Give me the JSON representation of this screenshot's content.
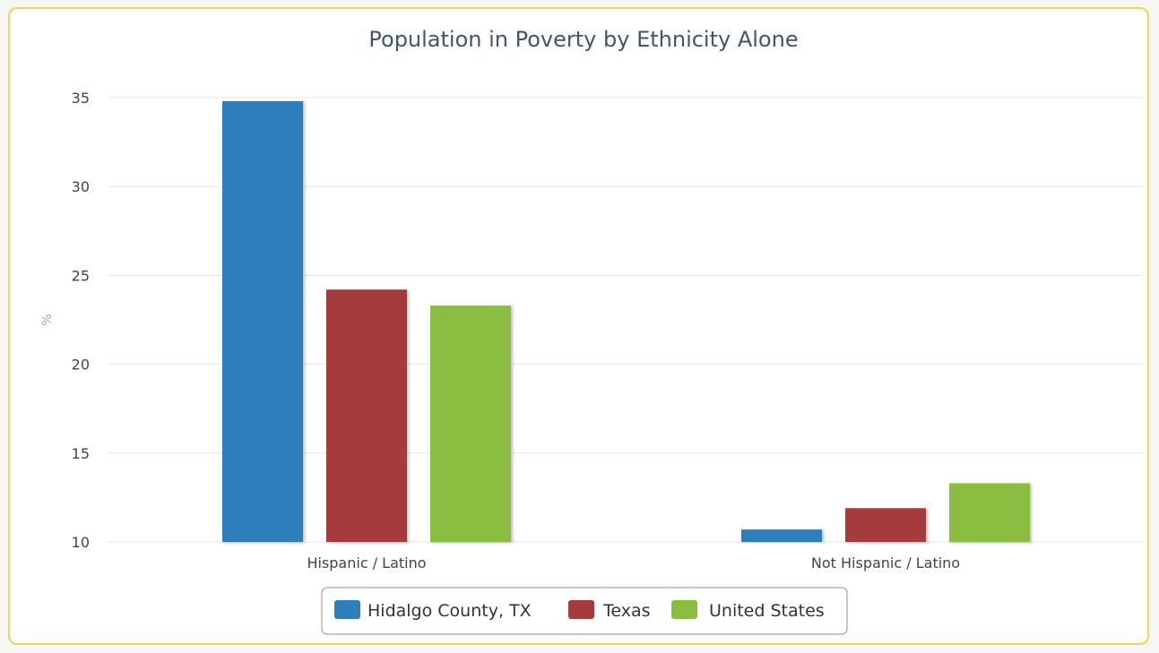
{
  "chart_data": {
    "type": "bar",
    "title": "Population in Poverty by Ethnicity Alone",
    "xlabel": "",
    "ylabel": "%",
    "ylim": [
      10,
      35
    ],
    "yticks": [
      10,
      15,
      20,
      25,
      30,
      35
    ],
    "grid": true,
    "legend_position": "bottom-center",
    "categories": [
      "Hispanic / Latino",
      "Not Hispanic / Latino"
    ],
    "series": [
      {
        "name": "Hidalgo County, TX",
        "color": "#2f7ebc",
        "values": [
          34.8,
          10.7
        ]
      },
      {
        "name": "Texas",
        "color": "#a63a3e",
        "values": [
          24.2,
          11.9
        ]
      },
      {
        "name": "United States",
        "color": "#8bbd3f",
        "values": [
          23.3,
          13.3
        ]
      }
    ]
  }
}
